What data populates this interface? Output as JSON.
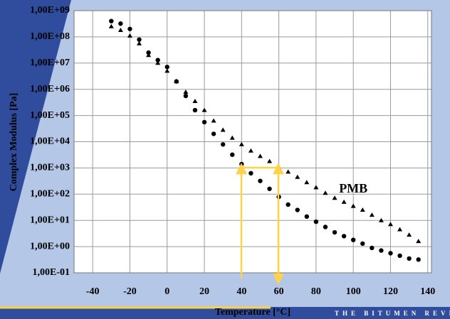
{
  "chart_data": {
    "type": "scatter",
    "x_label": "Temperature [°C]",
    "y_label": "Complex Modulus [Pa]",
    "footer": "THE BITUMEN REVIEW",
    "annotations": [
      {
        "text": "PMB",
        "x": 100,
        "y": 150
      }
    ],
    "x": [
      -30,
      -25,
      -20,
      -15,
      -10,
      -5,
      0,
      5,
      10,
      15,
      20,
      25,
      30,
      35,
      40,
      45,
      50,
      55,
      60,
      65,
      70,
      75,
      80,
      85,
      90,
      95,
      100,
      105,
      110,
      115,
      120,
      125,
      130,
      135
    ],
    "series": [
      {
        "marker": "circle",
        "color": "#000000",
        "values": [
          400000000.0,
          320000000.0,
          200000000.0,
          79000000.0,
          25000000.0,
          13000000.0,
          7100000.0,
          2000000.0,
          560000.0,
          160000.0,
          56000.0,
          20000.0,
          7900.0,
          3200.0,
          1400.0,
          630.0,
          320.0,
          160.0,
          79,
          40,
          25,
          14,
          8.9,
          5.6,
          3.5,
          2.5,
          1.8,
          1.3,
          0.89,
          0.71,
          0.56,
          0.45,
          0.35,
          0.32
        ]
      },
      {
        "marker": "triangle",
        "color": "#000000",
        "values": [
          250000000.0,
          180000000.0,
          110000000.0,
          56000000.0,
          20000000.0,
          10000000.0,
          5000000.0,
          2000000.0,
          790000.0,
          350000.0,
          160000.0,
          63000.0,
          28000.0,
          14000.0,
          7900.0,
          4500.0,
          2800.0,
          1800.0,
          1100.0,
          710.0,
          450.0,
          280.0,
          180.0,
          110.0,
          71,
          50,
          35,
          25,
          16,
          10,
          7.1,
          4.5,
          2.8,
          1.6
        ]
      }
    ],
    "xlim": [
      -50,
      142
    ],
    "xticks": [
      -40,
      -20,
      0,
      20,
      40,
      60,
      80,
      100,
      120,
      140
    ],
    "ylim": [
      0.1,
      1000000000.0
    ],
    "ylog": true,
    "yticks": [
      {
        "value": 1000000000.0,
        "label": "1,00E+09"
      },
      {
        "value": 100000000.0,
        "label": "1,00E+08"
      },
      {
        "value": 10000000.0,
        "label": "1,00E+07"
      },
      {
        "value": 1000000.0,
        "label": "1,00E+06"
      },
      {
        "value": 100000.0,
        "label": "1,00E+05"
      },
      {
        "value": 10000.0,
        "label": "1,00E+04"
      },
      {
        "value": 1000.0,
        "label": "1,00E+03"
      },
      {
        "value": 100.0,
        "label": "1,00E+02"
      },
      {
        "value": 10,
        "label": "1,00E+01"
      },
      {
        "value": 1,
        "label": "1,00E+00"
      },
      {
        "value": 0.1,
        "label": "1,00E-01"
      }
    ],
    "grid": true
  }
}
